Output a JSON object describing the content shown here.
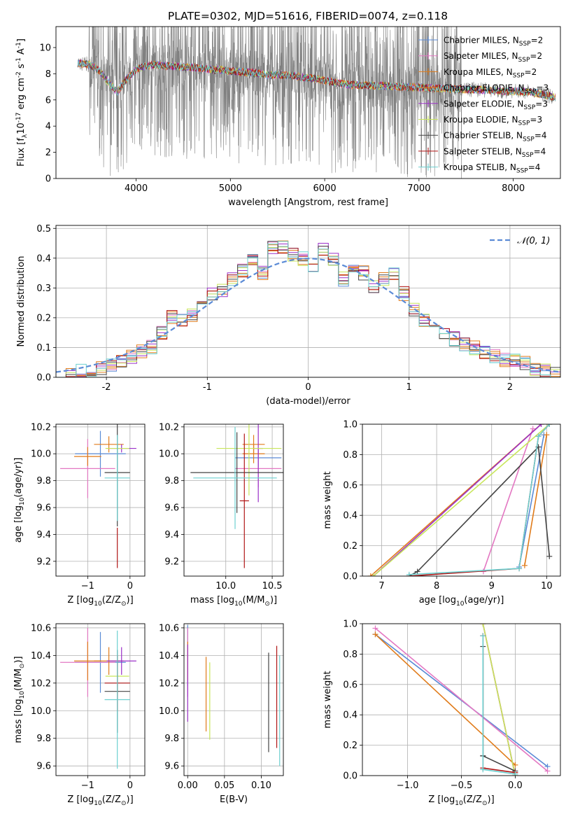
{
  "figure_title": "PLATE=0302, MJD=51616, FIBERID=0074, z=0.118",
  "colors": {
    "Chabrier MILES": "#5b8bd6",
    "Salpeter MILES": "#e377c2",
    "Kroupa MILES": "#e07b1a",
    "Chabrier ELODIE": "#e07b1a",
    "Salpeter ELODIE": "#9b30c8",
    "Kroupa ELODIE": "#c8e65a",
    "Chabrier STELIB": "#444444",
    "Salpeter STELIB": "#b01515",
    "Kroupa STELIB": "#6cd0d0",
    "data": "#808080",
    "normal": "#5b8bd6",
    "grid": "#b0b0b0"
  },
  "chart_data": [
    {
      "id": "spectrum",
      "type": "line",
      "xlabel": "wavelength [Angstrom, rest frame]",
      "ylabel": "Flux [f$_\\lambda$10$^{-17}$ erg cm$^{-2}$ s$^{-1}$ A$^{-1}$]",
      "xlim": [
        3150,
        8500
      ],
      "ylim": [
        0,
        11.6
      ],
      "xticks": [
        4000,
        5000,
        6000,
        7000,
        8000
      ],
      "yticks": [
        0,
        2,
        4,
        6,
        8,
        10
      ],
      "grid": false,
      "legend_position": "upper right",
      "legend": [
        {
          "label": "Chabrier MILES, N$_{SSP}$=2",
          "series": "Chabrier MILES"
        },
        {
          "label": "Salpeter MILES, N$_{SSP}$=2",
          "series": "Salpeter MILES"
        },
        {
          "label": "Kroupa MILES, N$_{SSP}$=2",
          "series": "Kroupa MILES"
        },
        {
          "label": "Chabrier ELODIE, N$_{SSP}$=3",
          "series": "Chabrier ELODIE"
        },
        {
          "label": "Salpeter ELODIE, N$_{SSP}$=3",
          "series": "Salpeter ELODIE"
        },
        {
          "label": "Kroupa ELODIE, N$_{SSP}$=3",
          "series": "Kroupa ELODIE"
        },
        {
          "label": "Chabrier STELIB, N$_{SSP}$=4",
          "series": "Chabrier STELIB"
        },
        {
          "label": "Salpeter STELIB, N$_{SSP}$=4",
          "series": "Salpeter STELIB"
        },
        {
          "label": "Kroupa STELIB, N$_{SSP}$=4",
          "series": "Kroupa STELIB"
        }
      ],
      "model_continuum": {
        "x": [
          3380,
          3500,
          3600,
          3700,
          3800,
          3900,
          4000,
          4100,
          4200,
          4300,
          4400,
          4500,
          4600,
          4700,
          4800,
          4900,
          5000,
          5200,
          5400,
          5600,
          5800,
          6000,
          6200,
          6400,
          6600,
          6800,
          7000,
          7200,
          7400,
          7600,
          7800,
          8000,
          8200,
          8450
        ],
        "y": [
          8.8,
          8.7,
          8.3,
          7.4,
          6.6,
          7.6,
          8.3,
          8.6,
          8.7,
          8.6,
          8.6,
          8.5,
          8.5,
          8.4,
          8.3,
          8.3,
          8.2,
          8.1,
          7.9,
          7.9,
          7.7,
          7.5,
          7.2,
          7.1,
          7.1,
          7.0,
          6.95,
          6.9,
          6.8,
          6.8,
          6.7,
          6.65,
          6.6,
          6.2
        ]
      },
      "data_noise_range": [
        0,
        11.6
      ]
    },
    {
      "id": "residuals",
      "type": "line",
      "xlabel": "(data-model)/error",
      "ylabel": "Normed distribution",
      "xlim": [
        -2.5,
        2.5
      ],
      "ylim": [
        0,
        0.51
      ],
      "xticks": [
        -2,
        -1,
        0,
        1,
        2
      ],
      "yticks": [
        0.0,
        0.1,
        0.2,
        0.3,
        0.4,
        0.5
      ],
      "grid": true,
      "legend_position": "upper right",
      "normal_label": "$\\mathcal{N}(0,1)$",
      "bin_edges": [
        -2.5,
        -2.4,
        -2.3,
        -2.2,
        -2.1,
        -2.0,
        -1.9,
        -1.8,
        -1.7,
        -1.6,
        -1.5,
        -1.4,
        -1.3,
        -1.2,
        -1.1,
        -1.0,
        -0.9,
        -0.8,
        -0.7,
        -0.6,
        -0.5,
        -0.4,
        -0.3,
        -0.2,
        -0.1,
        0.0,
        0.1,
        0.2,
        0.3,
        0.4,
        0.5,
        0.6,
        0.7,
        0.8,
        0.9,
        1.0,
        1.1,
        1.2,
        1.3,
        1.4,
        1.5,
        1.6,
        1.7,
        1.8,
        1.9,
        2.0,
        2.1,
        2.2,
        2.3,
        2.4,
        2.5
      ],
      "hist_base": [
        0.005,
        0.01,
        0.02,
        0.025,
        0.03,
        0.04,
        0.05,
        0.07,
        0.09,
        0.1,
        0.15,
        0.2,
        0.19,
        0.21,
        0.26,
        0.28,
        0.29,
        0.33,
        0.36,
        0.4,
        0.35,
        0.44,
        0.44,
        0.41,
        0.4,
        0.37,
        0.43,
        0.4,
        0.33,
        0.36,
        0.35,
        0.3,
        0.33,
        0.35,
        0.28,
        0.23,
        0.19,
        0.18,
        0.15,
        0.13,
        0.11,
        0.1,
        0.08,
        0.07,
        0.06,
        0.06,
        0.05,
        0.03,
        0.02,
        0.01
      ]
    },
    {
      "id": "age_vs_Z",
      "type": "scatter",
      "xlabel": "Z [log$_{10}$(Z/Z$_\\odot$)]",
      "ylabel": "age  [log$_{10}$(age/yr)]",
      "xlim": [
        -1.75,
        0.35
      ],
      "ylim": [
        9.09,
        10.22
      ],
      "xticks": [
        -1,
        0
      ],
      "yticks": [
        9.2,
        9.4,
        9.6,
        9.8,
        10.0,
        10.2
      ],
      "grid": true,
      "errorbars": [
        {
          "series": "Chabrier MILES",
          "x": -0.7,
          "y": 10.0,
          "xerr": 0.6,
          "yerr": 0.17
        },
        {
          "series": "Salpeter MILES",
          "x": -1.0,
          "y": 9.89,
          "xerr": 0.65,
          "yerr": 0.22
        },
        {
          "series": "Kroupa MILES",
          "x": -1.0,
          "y": 9.98,
          "xerr": 0.32,
          "yerr": 0.07
        },
        {
          "series": "Chabrier ELODIE",
          "x": -0.5,
          "y": 10.07,
          "xerr": 0.35,
          "yerr": 0.06
        },
        {
          "series": "Salpeter ELODIE",
          "x": -0.2,
          "y": 10.04,
          "xerr": 0.35,
          "yerr": 0.03
        },
        {
          "series": "Kroupa ELODIE",
          "x": -0.3,
          "y": 10.04,
          "xerr": 0.28,
          "yerr": 0.03
        },
        {
          "series": "Chabrier STELIB",
          "x": -0.3,
          "y": 9.86,
          "xerr": 0.3,
          "yerr": 0.4
        },
        {
          "series": "Salpeter STELIB",
          "x": -0.3,
          "y": 9.3,
          "xerr": 0.0,
          "yerr": 0.15
        },
        {
          "series": "Kroupa STELIB",
          "x": -0.3,
          "y": 9.82,
          "xerr": 0.3,
          "yerr": 0.32
        }
      ]
    },
    {
      "id": "age_vs_mass",
      "type": "scatter",
      "xlabel": "mass [log$_{10}$(M/M$_\\odot$)]",
      "ylabel": "",
      "xlim": [
        9.55,
        10.62
      ],
      "ylim": [
        9.09,
        10.22
      ],
      "xticks": [
        10.0,
        10.5
      ],
      "yticks": [
        9.2,
        9.4,
        9.6,
        9.8,
        10.0,
        10.2
      ],
      "grid": true,
      "errorbars": [
        {
          "series": "Chabrier MILES",
          "x": 10.35,
          "y": 9.97,
          "xerr": 0.25,
          "yerr": 0.07
        },
        {
          "series": "Salpeter MILES",
          "x": 10.35,
          "y": 9.89,
          "xerr": 0.25,
          "yerr": 0.14
        },
        {
          "series": "Kroupa MILES",
          "x": 10.3,
          "y": 10.0,
          "xerr": 0.12,
          "yerr": 0.07
        },
        {
          "series": "Chabrier ELODIE",
          "x": 10.3,
          "y": 10.07,
          "xerr": 0.12,
          "yerr": 0.07
        },
        {
          "series": "Salpeter ELODIE",
          "x": 10.35,
          "y": 10.04,
          "xerr": 0.05,
          "yerr": 0.4
        },
        {
          "series": "Kroupa ELODIE",
          "x": 10.25,
          "y": 10.04,
          "xerr": 0.35,
          "yerr": 0.35
        },
        {
          "series": "Chabrier STELIB",
          "x": 10.12,
          "y": 9.86,
          "xerr": 0.5,
          "yerr": 0.3
        },
        {
          "series": "Salpeter STELIB",
          "x": 10.2,
          "y": 9.65,
          "xerr": 0.05,
          "yerr": 0.5
        },
        {
          "series": "Kroupa STELIB",
          "x": 10.1,
          "y": 9.82,
          "xerr": 0.45,
          "yerr": 0.38
        }
      ]
    },
    {
      "id": "mass_weight_vs_age",
      "type": "line",
      "xlabel": "age  [log$_{10}$(age/yr)]",
      "ylabel": "mass weight",
      "xlim": [
        6.65,
        10.25
      ],
      "ylim": [
        0,
        1
      ],
      "xticks": [
        7,
        8,
        9,
        10
      ],
      "yticks": [
        0.0,
        0.2,
        0.4,
        0.6,
        0.8,
        1.0
      ],
      "grid": true,
      "series": [
        {
          "name": "Chabrier MILES",
          "x": [
            9.5,
            9.95
          ],
          "y": [
            0.06,
            0.93
          ]
        },
        {
          "name": "Salpeter MILES",
          "x": [
            8.85,
            9.75
          ],
          "y": [
            0.03,
            0.97
          ]
        },
        {
          "name": "Kroupa MILES",
          "x": [
            9.6,
            10.0
          ],
          "y": [
            0.07,
            0.93
          ]
        },
        {
          "name": "Chabrier ELODIE",
          "x": [
            6.8,
            9.9
          ],
          "y": [
            0.0,
            1.0
          ]
        },
        {
          "name": "Salpeter ELODIE",
          "x": [
            6.85,
            9.9
          ],
          "y": [
            0.0,
            1.0
          ]
        },
        {
          "name": "Kroupa ELODIE",
          "x": [
            6.85,
            10.05
          ],
          "y": [
            0.0,
            1.0
          ]
        },
        {
          "name": "Chabrier STELIB",
          "x": [
            7.5,
            7.65,
            9.85,
            10.05
          ],
          "y": [
            0.0,
            0.03,
            0.85,
            0.13
          ]
        },
        {
          "name": "Salpeter STELIB",
          "x": [
            7.5,
            9.5,
            9.85,
            10.05
          ],
          "y": [
            0.0,
            0.05,
            0.92,
            1.0
          ]
        },
        {
          "name": "Kroupa STELIB",
          "x": [
            7.5,
            9.5,
            9.85,
            10.05
          ],
          "y": [
            0.01,
            0.05,
            0.92,
            1.0
          ]
        }
      ]
    },
    {
      "id": "mass_vs_Z",
      "type": "scatter",
      "xlabel": "Z [log$_{10}$(Z/Z$_\\odot$)]",
      "ylabel": "mass [log$_{10}$(M/M$_\\odot$)]",
      "xlim": [
        -1.75,
        0.35
      ],
      "ylim": [
        9.53,
        10.63
      ],
      "xticks": [
        -1,
        0
      ],
      "yticks": [
        9.6,
        9.8,
        10.0,
        10.2,
        10.4,
        10.6
      ],
      "grid": true,
      "errorbars": [
        {
          "series": "Chabrier MILES",
          "x": -0.7,
          "y": 10.35,
          "xerr": 0.6,
          "yerr": 0.22
        },
        {
          "series": "Salpeter MILES",
          "x": -1.0,
          "y": 10.35,
          "xerr": 0.65,
          "yerr": 0.25
        },
        {
          "series": "Kroupa MILES",
          "x": -1.0,
          "y": 10.36,
          "xerr": 0.32,
          "yerr": 0.14
        },
        {
          "series": "Chabrier ELODIE",
          "x": -0.5,
          "y": 10.36,
          "xerr": 0.35,
          "yerr": 0.1
        },
        {
          "series": "Salpeter ELODIE",
          "x": -0.2,
          "y": 10.36,
          "xerr": 0.35,
          "yerr": 0.1
        },
        {
          "series": "Kroupa ELODIE",
          "x": -0.3,
          "y": 10.25,
          "xerr": 0.28,
          "yerr": 0.15
        },
        {
          "series": "Chabrier STELIB",
          "x": -0.3,
          "y": 10.14,
          "xerr": 0.3,
          "yerr": 0.3
        },
        {
          "series": "Salpeter STELIB",
          "x": -0.3,
          "y": 10.2,
          "xerr": 0.3,
          "yerr": 0.2
        },
        {
          "series": "Kroupa STELIB",
          "x": -0.3,
          "y": 10.08,
          "xerr": 0.3,
          "yerr": 0.5
        }
      ]
    },
    {
      "id": "mass_vs_ebv",
      "type": "scatter",
      "xlabel": "E(B-V)",
      "ylabel": "",
      "xlim": [
        -0.005,
        0.13
      ],
      "ylim": [
        9.53,
        10.63
      ],
      "xticks": [
        0.0,
        0.05,
        0.1
      ],
      "xticklabels": [
        "0.00",
        "0.05",
        "0.10"
      ],
      "yticks": [
        9.6,
        9.8,
        10.0,
        10.2,
        10.4,
        10.6
      ],
      "grid": true,
      "errorbars": [
        {
          "series": "Chabrier MILES",
          "x": 0.0,
          "y": 10.4,
          "xerr": 0,
          "yerr": 0.22
        },
        {
          "series": "Salpeter MILES",
          "x": 0.0,
          "y": 10.35,
          "xerr": 0,
          "yerr": 0.25
        },
        {
          "series": "Kroupa MILES",
          "x": 0.0,
          "y": 10.36,
          "xerr": 0,
          "yerr": 0.14
        },
        {
          "series": "Salpeter ELODIE",
          "x": 0.0,
          "y": 10.2,
          "xerr": 0,
          "yerr": 0.28
        },
        {
          "series": "Chabrier ELODIE",
          "x": 0.025,
          "y": 10.12,
          "xerr": 0,
          "yerr": 0.27
        },
        {
          "series": "Kroupa ELODIE",
          "x": 0.03,
          "y": 10.07,
          "xerr": 0,
          "yerr": 0.28
        },
        {
          "series": "Chabrier STELIB",
          "x": 0.11,
          "y": 10.06,
          "xerr": 0,
          "yerr": 0.36
        },
        {
          "series": "Salpeter STELIB",
          "x": 0.121,
          "y": 10.1,
          "xerr": 0,
          "yerr": 0.37
        },
        {
          "series": "Kroupa STELIB",
          "x": 0.125,
          "y": 10.0,
          "xerr": 0,
          "yerr": 0.4
        }
      ]
    },
    {
      "id": "mass_weight_vs_Z",
      "type": "line",
      "xlabel": "Z [log$_{10}$(Z/Z$_\\odot$)]",
      "ylabel": "mass weight",
      "xlim": [
        -1.42,
        0.42
      ],
      "ylim": [
        0,
        1
      ],
      "xticks": [
        -1.0,
        -0.5,
        0.0
      ],
      "xticklabels": [
        "−1.0",
        "−0.5",
        "0.0"
      ],
      "yticks": [
        0.0,
        0.2,
        0.4,
        0.6,
        0.8,
        1.0
      ],
      "grid": true,
      "series": [
        {
          "name": "Chabrier MILES",
          "x": [
            -1.3,
            0.3
          ],
          "y": [
            0.93,
            0.06
          ]
        },
        {
          "name": "Salpeter MILES",
          "x": [
            -1.3,
            0.3
          ],
          "y": [
            0.97,
            0.03
          ]
        },
        {
          "name": "Kroupa MILES",
          "x": [
            -1.3,
            0.0
          ],
          "y": [
            0.93,
            0.07
          ]
        },
        {
          "name": "Chabrier ELODIE",
          "x": [
            -0.3,
            0.0
          ],
          "y": [
            1.0,
            0.0
          ]
        },
        {
          "name": "Salpeter ELODIE",
          "x": [
            -0.3,
            0.0
          ],
          "y": [
            1.0,
            0.0
          ]
        },
        {
          "name": "Kroupa ELODIE",
          "x": [
            -0.3,
            0.0
          ],
          "y": [
            1.0,
            0.0
          ]
        },
        {
          "name": "Chabrier STELIB",
          "x": [
            -0.3,
            -0.3,
            -0.3,
            0.0
          ],
          "y": [
            0.85,
            0.13,
            0.13,
            0.03
          ]
        },
        {
          "name": "Salpeter STELIB",
          "x": [
            -0.3,
            -0.3,
            0.0
          ],
          "y": [
            0.92,
            0.05,
            0.02
          ]
        },
        {
          "name": "Kroupa STELIB",
          "x": [
            -0.3,
            -0.3,
            0.0
          ],
          "y": [
            0.92,
            0.04,
            0.01
          ]
        }
      ]
    }
  ]
}
